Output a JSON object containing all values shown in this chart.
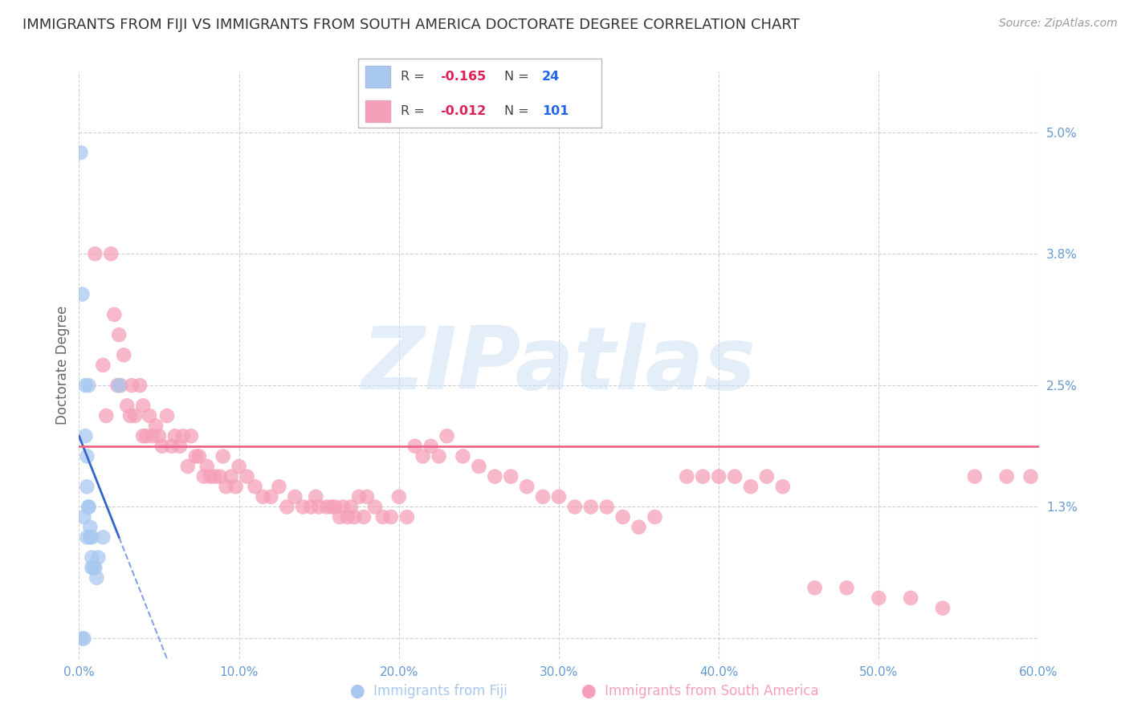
{
  "title": "IMMIGRANTS FROM FIJI VS IMMIGRANTS FROM SOUTH AMERICA DOCTORATE DEGREE CORRELATION CHART",
  "source": "Source: ZipAtlas.com",
  "ylabel": "Doctorate Degree",
  "xlim": [
    0.0,
    0.6
  ],
  "ylim": [
    -0.002,
    0.056
  ],
  "xticks": [
    0.0,
    0.1,
    0.2,
    0.3,
    0.4,
    0.5,
    0.6
  ],
  "xticklabels": [
    "0.0%",
    "10.0%",
    "20.0%",
    "30.0%",
    "40.0%",
    "50.0%",
    "60.0%"
  ],
  "ytick_positions": [
    0.0,
    0.013,
    0.025,
    0.038,
    0.05
  ],
  "ytick_labels": [
    "",
    "1.3%",
    "2.5%",
    "3.8%",
    "5.0%"
  ],
  "grid_color": "#cccccc",
  "background_color": "#ffffff",
  "fiji_color": "#a8c8f0",
  "south_america_color": "#f5a0b8",
  "fiji_line_color": "#3366cc",
  "south_america_line_color": "#ee6688",
  "tick_color": "#6699cc",
  "fiji_R": -0.165,
  "fiji_N": 24,
  "south_america_R": -0.012,
  "south_america_N": 101,
  "fiji_x": [
    0.001,
    0.002,
    0.002,
    0.003,
    0.003,
    0.004,
    0.004,
    0.005,
    0.005,
    0.005,
    0.006,
    0.006,
    0.006,
    0.007,
    0.007,
    0.008,
    0.008,
    0.008,
    0.009,
    0.01,
    0.011,
    0.012,
    0.015,
    0.025
  ],
  "fiji_y": [
    0.048,
    0.0,
    0.034,
    0.0,
    0.012,
    0.025,
    0.02,
    0.018,
    0.015,
    0.01,
    0.013,
    0.013,
    0.025,
    0.011,
    0.01,
    0.01,
    0.008,
    0.007,
    0.007,
    0.007,
    0.006,
    0.008,
    0.01,
    0.025
  ],
  "south_america_x": [
    0.01,
    0.015,
    0.017,
    0.02,
    0.022,
    0.024,
    0.025,
    0.026,
    0.028,
    0.03,
    0.032,
    0.033,
    0.035,
    0.038,
    0.04,
    0.04,
    0.042,
    0.044,
    0.046,
    0.048,
    0.05,
    0.052,
    0.055,
    0.058,
    0.06,
    0.063,
    0.065,
    0.068,
    0.07,
    0.073,
    0.075,
    0.078,
    0.08,
    0.082,
    0.085,
    0.088,
    0.09,
    0.092,
    0.095,
    0.098,
    0.1,
    0.105,
    0.11,
    0.115,
    0.12,
    0.125,
    0.13,
    0.135,
    0.14,
    0.145,
    0.148,
    0.15,
    0.155,
    0.158,
    0.16,
    0.163,
    0.165,
    0.168,
    0.17,
    0.172,
    0.175,
    0.178,
    0.18,
    0.185,
    0.19,
    0.195,
    0.2,
    0.205,
    0.21,
    0.215,
    0.22,
    0.225,
    0.23,
    0.24,
    0.25,
    0.26,
    0.27,
    0.28,
    0.29,
    0.3,
    0.31,
    0.32,
    0.33,
    0.34,
    0.35,
    0.36,
    0.38,
    0.39,
    0.4,
    0.41,
    0.42,
    0.43,
    0.44,
    0.46,
    0.48,
    0.5,
    0.52,
    0.54,
    0.56,
    0.58,
    0.595
  ],
  "south_america_y": [
    0.038,
    0.027,
    0.022,
    0.038,
    0.032,
    0.025,
    0.03,
    0.025,
    0.028,
    0.023,
    0.022,
    0.025,
    0.022,
    0.025,
    0.023,
    0.02,
    0.02,
    0.022,
    0.02,
    0.021,
    0.02,
    0.019,
    0.022,
    0.019,
    0.02,
    0.019,
    0.02,
    0.017,
    0.02,
    0.018,
    0.018,
    0.016,
    0.017,
    0.016,
    0.016,
    0.016,
    0.018,
    0.015,
    0.016,
    0.015,
    0.017,
    0.016,
    0.015,
    0.014,
    0.014,
    0.015,
    0.013,
    0.014,
    0.013,
    0.013,
    0.014,
    0.013,
    0.013,
    0.013,
    0.013,
    0.012,
    0.013,
    0.012,
    0.013,
    0.012,
    0.014,
    0.012,
    0.014,
    0.013,
    0.012,
    0.012,
    0.014,
    0.012,
    0.019,
    0.018,
    0.019,
    0.018,
    0.02,
    0.018,
    0.017,
    0.016,
    0.016,
    0.015,
    0.014,
    0.014,
    0.013,
    0.013,
    0.013,
    0.012,
    0.011,
    0.012,
    0.016,
    0.016,
    0.016,
    0.016,
    0.015,
    0.016,
    0.015,
    0.005,
    0.005,
    0.004,
    0.004,
    0.003,
    0.016,
    0.016,
    0.016
  ],
  "watermark_text": "ZIPatlas",
  "watermark_color": "#c8dff5",
  "watermark_alpha": 0.5,
  "legend_fiji_label": "R = -0.165   N =  24",
  "legend_sa_label": "R = -0.012   N = 101"
}
